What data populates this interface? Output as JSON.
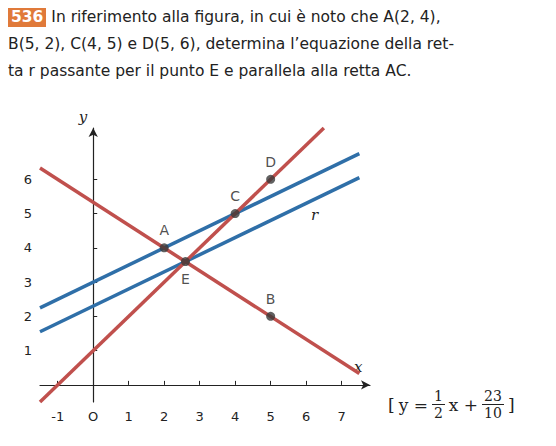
{
  "problem": {
    "number": "536",
    "lines": [
      "In riferimento alla figura, in cui è noto che A(2, 4),",
      "B(5, 2), C(4, 5) e D(5, 6), determina l’equazione della ret-",
      "ta r passante per il punto E e parallela alla retta AC."
    ]
  },
  "answer": [
    "[",
    "y =",
    {
      "num": "1",
      "den": "2"
    },
    "x +",
    {
      "num": "23",
      "den": "10"
    },
    "]"
  ],
  "chart_data": {
    "type": "line",
    "x_label": "x",
    "y_label": "y",
    "xlim": [
      -1.5,
      7.8
    ],
    "ylim": [
      -0.5,
      7.5
    ],
    "xticks": [
      -1,
      {
        "value": 0,
        "label": "O"
      },
      1,
      2,
      3,
      4,
      5,
      6,
      7
    ],
    "yticks": [
      1,
      2,
      3,
      4,
      5,
      6
    ],
    "grid": false,
    "series": [
      {
        "color": "#2f6fa8",
        "x": [
          -1.5,
          7.5
        ],
        "values": [
          2.25,
          6.75
        ]
      },
      {
        "color": "#2f6fa8",
        "x": [
          -1.5,
          7.5
        ],
        "values": [
          1.55,
          6.05
        ],
        "label": "r"
      },
      {
        "color": "#c0504d",
        "x": [
          -1.5,
          7.5
        ],
        "values": [
          6.33,
          0.33
        ]
      },
      {
        "color": "#c0504d",
        "x": [
          -1.5,
          6.5
        ],
        "values": [
          -0.5,
          7.5
        ]
      }
    ],
    "points": {
      "color": "#3a3a3a",
      "labels": [
        "A",
        "B",
        "C",
        "D",
        "E"
      ],
      "x": [
        2,
        5,
        4,
        5,
        2.6
      ],
      "y": [
        4,
        2,
        5,
        6,
        3.6
      ]
    }
  }
}
